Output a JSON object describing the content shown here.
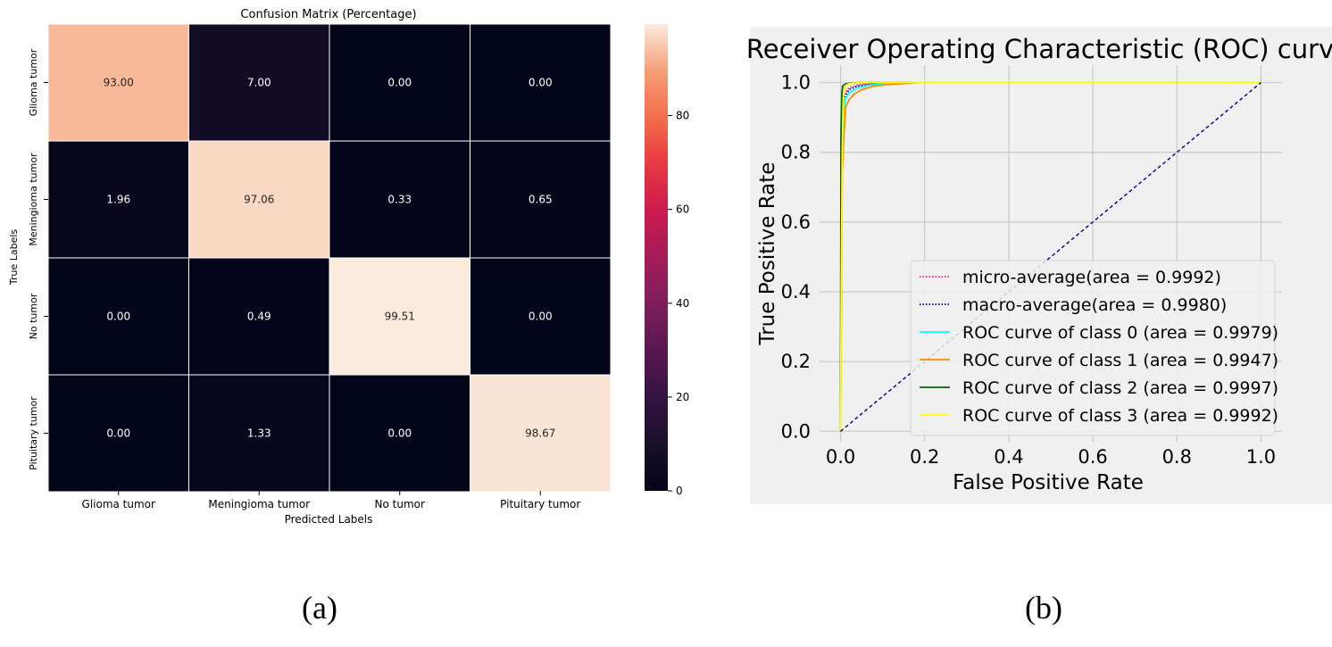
{
  "chart_data": [
    {
      "type": "heatmap",
      "title": "Confusion Matrix (Percentage)",
      "xlabel": "Predicted Labels",
      "ylabel": "True Labels",
      "x_categories": [
        "Glioma tumor",
        "Meningioma tumor",
        "No tumor",
        "Pituitary tumor"
      ],
      "y_categories": [
        "Glioma tumor",
        "Meningioma tumor",
        "No tumor",
        "Pituitary tumor"
      ],
      "values": [
        [
          93.0,
          7.0,
          0.0,
          0.0
        ],
        [
          1.96,
          97.06,
          0.33,
          0.65
        ],
        [
          0.0,
          0.49,
          99.51,
          0.0
        ],
        [
          0.0,
          1.33,
          0.0,
          98.67
        ]
      ],
      "cell_labels": [
        [
          "93.00",
          "7.00",
          "0.00",
          "0.00"
        ],
        [
          "1.96",
          "97.06",
          "0.33",
          "0.65"
        ],
        [
          "0.00",
          "0.49",
          "99.51",
          "0.00"
        ],
        [
          "0.00",
          "1.33",
          "0.00",
          "98.67"
        ]
      ],
      "colormap": "rocket",
      "colorbar_ticks": [
        0,
        20,
        40,
        60,
        80
      ],
      "colorbar_range": [
        0,
        99.51
      ]
    },
    {
      "type": "line",
      "title": "Receiver Operating Characteristic (ROC) curve",
      "xlabel": "False Positive Rate",
      "ylabel": "True Positive Rate",
      "xlim": [
        -0.05,
        1.05
      ],
      "ylim": [
        -0.03,
        1.05
      ],
      "xticks": [
        0.0,
        0.2,
        0.4,
        0.6,
        0.8,
        1.0
      ],
      "yticks": [
        0.0,
        0.2,
        0.4,
        0.6,
        0.8,
        1.0
      ],
      "xtick_labels": [
        "0.0",
        "0.2",
        "0.4",
        "0.6",
        "0.8",
        "1.0"
      ],
      "ytick_labels": [
        "0.0",
        "0.2",
        "0.4",
        "0.6",
        "0.8",
        "1.0"
      ],
      "grid": true,
      "legend_position": "lower-right",
      "series": [
        {
          "name": "micro-average(area = 0.9992)",
          "color": "#ff1493",
          "style": "dotted",
          "x": [
            0,
            0.002,
            0.005,
            0.01,
            0.02,
            0.04,
            0.07,
            0.1,
            0.18
          ],
          "y": [
            0,
            0.85,
            0.94,
            0.97,
            0.985,
            0.993,
            0.997,
            0.999,
            1.0
          ]
        },
        {
          "name": "macro-average(area = 0.9980)",
          "color": "#000080",
          "style": "dotted",
          "x": [
            0,
            0.002,
            0.005,
            0.01,
            0.02,
            0.04,
            0.07,
            0.12,
            0.18
          ],
          "y": [
            0,
            0.8,
            0.92,
            0.96,
            0.98,
            0.99,
            0.995,
            0.999,
            1.0
          ]
        },
        {
          "name": "ROC curve of class 0 (area = 0.9979)",
          "color": "#00ffff",
          "style": "solid",
          "x": [
            0,
            0.003,
            0.006,
            0.01,
            0.02,
            0.04,
            0.07,
            0.12,
            0.18
          ],
          "y": [
            0,
            0.78,
            0.9,
            0.95,
            0.97,
            0.985,
            0.993,
            0.998,
            1.0
          ]
        },
        {
          "name": "ROC curve of class 1 (area = 0.9947)",
          "color": "#ff8c00",
          "style": "solid",
          "x": [
            0,
            0.004,
            0.008,
            0.012,
            0.02,
            0.03,
            0.05,
            0.08,
            0.12,
            0.19
          ],
          "y": [
            0,
            0.74,
            0.85,
            0.93,
            0.95,
            0.965,
            0.98,
            0.99,
            0.995,
            1.0
          ]
        },
        {
          "name": "ROC curve of class 2 (area = 0.9997)",
          "color": "#006400",
          "style": "solid",
          "x": [
            0,
            0.001,
            0.003,
            0.005,
            0.01,
            0.02,
            0.05,
            0.1,
            0.17
          ],
          "y": [
            0,
            0.84,
            0.97,
            0.99,
            0.995,
            0.998,
            1.0,
            1.0,
            1.0
          ]
        },
        {
          "name": "ROC curve of class 3 (area = 0.9992)",
          "color": "#ffff00",
          "style": "solid",
          "x": [
            0,
            0.001,
            0.002,
            0.004,
            0.006,
            0.01,
            0.02,
            0.05,
            1.0
          ],
          "y": [
            0,
            0.27,
            0.48,
            0.8,
            0.95,
            0.99,
            0.997,
            1.0,
            1.0
          ]
        },
        {
          "name": "",
          "color": "#000080",
          "style": "dashed",
          "x": [
            0,
            1
          ],
          "y": [
            0,
            1
          ]
        }
      ]
    }
  ],
  "captions": {
    "a": "(a)",
    "b": "(b)"
  }
}
